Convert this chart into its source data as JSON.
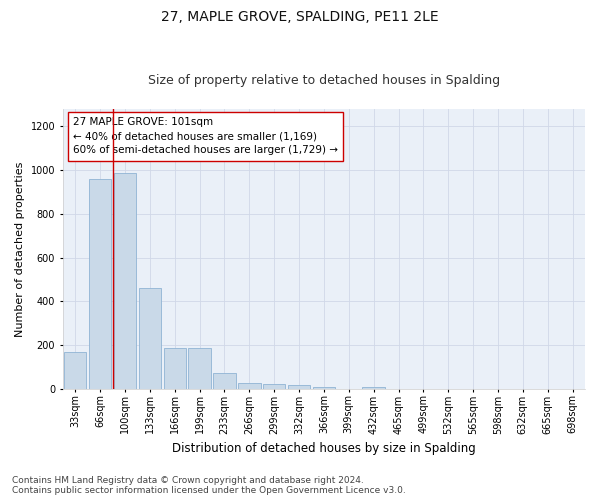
{
  "title": "27, MAPLE GROVE, SPALDING, PE11 2LE",
  "subtitle": "Size of property relative to detached houses in Spalding",
  "xlabel": "Distribution of detached houses by size in Spalding",
  "ylabel": "Number of detached properties",
  "categories": [
    "33sqm",
    "66sqm",
    "100sqm",
    "133sqm",
    "166sqm",
    "199sqm",
    "233sqm",
    "266sqm",
    "299sqm",
    "332sqm",
    "366sqm",
    "399sqm",
    "432sqm",
    "465sqm",
    "499sqm",
    "532sqm",
    "565sqm",
    "598sqm",
    "632sqm",
    "665sqm",
    "698sqm"
  ],
  "values": [
    170,
    960,
    985,
    460,
    185,
    185,
    70,
    25,
    20,
    15,
    10,
    0,
    8,
    0,
    0,
    0,
    0,
    0,
    0,
    0,
    0
  ],
  "bar_color": "#c9d9e8",
  "bar_edge_color": "#8fb4d4",
  "vline_x": 1.5,
  "vline_color": "#cc0000",
  "annotation_text": "27 MAPLE GROVE: 101sqm\n← 40% of detached houses are smaller (1,169)\n60% of semi-detached houses are larger (1,729) →",
  "annotation_box_color": "#ffffff",
  "annotation_box_edge": "#cc0000",
  "ylim": [
    0,
    1280
  ],
  "yticks": [
    0,
    200,
    400,
    600,
    800,
    1000,
    1200
  ],
  "footer_text": "Contains HM Land Registry data © Crown copyright and database right 2024.\nContains public sector information licensed under the Open Government Licence v3.0.",
  "bg_color": "#ffffff",
  "grid_color": "#d0d8e8",
  "title_fontsize": 10,
  "subtitle_fontsize": 9,
  "xlabel_fontsize": 8.5,
  "ylabel_fontsize": 8,
  "tick_fontsize": 7,
  "annotation_fontsize": 7.5,
  "footer_fontsize": 6.5,
  "ax_bg_color": "#eaf0f8"
}
